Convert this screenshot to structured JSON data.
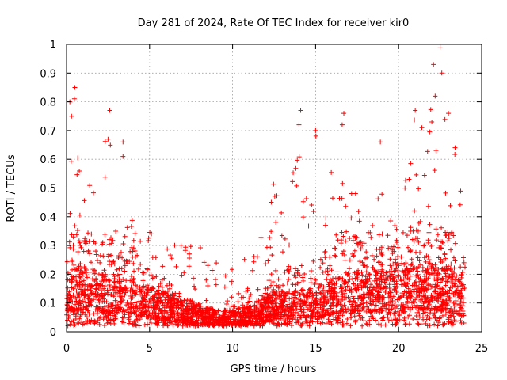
{
  "chart_data": {
    "type": "scatter",
    "title": "Day 281 of 2024, Rate Of TEC Index for receiver kir0",
    "xlabel": "GPS time / hours",
    "ylabel": "ROTI / TECUs",
    "xlim": [
      0,
      25
    ],
    "ylim": [
      0,
      1
    ],
    "xticks": [
      0,
      5,
      10,
      15,
      20,
      25
    ],
    "yticks": [
      0,
      0.1,
      0.2,
      0.3,
      0.4,
      0.5,
      0.6,
      0.7,
      0.8,
      0.9,
      1
    ],
    "xtick_labels": [
      "0",
      "5",
      "10",
      "15",
      "20",
      "25"
    ],
    "ytick_labels": [
      "0",
      "0.1",
      "0.2",
      "0.3",
      "0.4",
      "0.5",
      "0.6",
      "0.7",
      "0.8",
      "0.9",
      "1"
    ],
    "grid": true,
    "marker": "+",
    "color": "#ff0000",
    "series": [
      {
        "name": "ROTI",
        "x_range": [
          0,
          24
        ],
        "envelope": [
          {
            "x": 0.0,
            "base": 0.1,
            "spread": 0.25,
            "peak": 0.8
          },
          {
            "x": 0.5,
            "base": 0.14,
            "spread": 0.3,
            "peak": 0.85
          },
          {
            "x": 1.0,
            "base": 0.15,
            "spread": 0.25,
            "peak": 0.45
          },
          {
            "x": 1.5,
            "base": 0.14,
            "spread": 0.28,
            "peak": 0.55
          },
          {
            "x": 2.0,
            "base": 0.13,
            "spread": 0.25,
            "peak": 0.55
          },
          {
            "x": 2.5,
            "base": 0.12,
            "spread": 0.3,
            "peak": 0.77
          },
          {
            "x": 3.0,
            "base": 0.13,
            "spread": 0.22,
            "peak": 0.66
          },
          {
            "x": 3.5,
            "base": 0.14,
            "spread": 0.25,
            "peak": 0.5
          },
          {
            "x": 4.0,
            "base": 0.12,
            "spread": 0.22,
            "peak": 0.4
          },
          {
            "x": 5.0,
            "base": 0.1,
            "spread": 0.18,
            "peak": 0.36
          },
          {
            "x": 6.0,
            "base": 0.08,
            "spread": 0.14,
            "peak": 0.3
          },
          {
            "x": 7.0,
            "base": 0.06,
            "spread": 0.1,
            "peak": 0.32
          },
          {
            "x": 8.0,
            "base": 0.05,
            "spread": 0.07,
            "peak": 0.3
          },
          {
            "x": 9.0,
            "base": 0.04,
            "spread": 0.06,
            "peak": 0.25
          },
          {
            "x": 10.0,
            "base": 0.04,
            "spread": 0.06,
            "peak": 0.24
          },
          {
            "x": 11.0,
            "base": 0.05,
            "spread": 0.08,
            "peak": 0.3
          },
          {
            "x": 12.0,
            "base": 0.07,
            "spread": 0.12,
            "peak": 0.35
          },
          {
            "x": 12.5,
            "base": 0.09,
            "spread": 0.18,
            "peak": 0.58
          },
          {
            "x": 13.0,
            "base": 0.08,
            "spread": 0.16,
            "peak": 0.45
          },
          {
            "x": 13.5,
            "base": 0.09,
            "spread": 0.2,
            "peak": 0.5
          },
          {
            "x": 14.0,
            "base": 0.1,
            "spread": 0.22,
            "peak": 0.77
          },
          {
            "x": 14.5,
            "base": 0.09,
            "spread": 0.18,
            "peak": 0.45
          },
          {
            "x": 15.0,
            "base": 0.1,
            "spread": 0.22,
            "peak": 0.7
          },
          {
            "x": 16.0,
            "base": 0.12,
            "spread": 0.25,
            "peak": 0.55
          },
          {
            "x": 16.5,
            "base": 0.13,
            "spread": 0.28,
            "peak": 0.76
          },
          {
            "x": 17.0,
            "base": 0.14,
            "spread": 0.28,
            "peak": 0.6
          },
          {
            "x": 17.5,
            "base": 0.14,
            "spread": 0.26,
            "peak": 0.5
          },
          {
            "x": 18.0,
            "base": 0.15,
            "spread": 0.24,
            "peak": 0.45
          },
          {
            "x": 18.5,
            "base": 0.14,
            "spread": 0.24,
            "peak": 0.42
          },
          {
            "x": 19.0,
            "base": 0.14,
            "spread": 0.22,
            "peak": 0.66
          },
          {
            "x": 19.5,
            "base": 0.13,
            "spread": 0.24,
            "peak": 0.45
          },
          {
            "x": 20.0,
            "base": 0.14,
            "spread": 0.26,
            "peak": 0.45
          },
          {
            "x": 20.5,
            "base": 0.15,
            "spread": 0.3,
            "peak": 0.55
          },
          {
            "x": 21.0,
            "base": 0.16,
            "spread": 0.3,
            "peak": 0.77
          },
          {
            "x": 21.5,
            "base": 0.16,
            "spread": 0.32,
            "peak": 0.6
          },
          {
            "x": 22.0,
            "base": 0.16,
            "spread": 0.32,
            "peak": 0.93
          },
          {
            "x": 22.5,
            "base": 0.15,
            "spread": 0.3,
            "peak": 0.99
          },
          {
            "x": 23.0,
            "base": 0.14,
            "spread": 0.3,
            "peak": 0.76
          },
          {
            "x": 23.5,
            "base": 0.12,
            "spread": 0.28,
            "peak": 0.64
          },
          {
            "x": 24.0,
            "base": 0.1,
            "spread": 0.2,
            "peak": 0.4
          }
        ],
        "notable_points": [
          {
            "x": 0.2,
            "y": 0.8
          },
          {
            "x": 0.5,
            "y": 0.85
          },
          {
            "x": 0.3,
            "y": 0.75
          },
          {
            "x": 2.6,
            "y": 0.77
          },
          {
            "x": 2.5,
            "y": 0.67
          },
          {
            "x": 3.4,
            "y": 0.66
          },
          {
            "x": 3.4,
            "y": 0.61
          },
          {
            "x": 14.1,
            "y": 0.77
          },
          {
            "x": 14.0,
            "y": 0.72
          },
          {
            "x": 15.0,
            "y": 0.7
          },
          {
            "x": 16.7,
            "y": 0.76
          },
          {
            "x": 16.6,
            "y": 0.72
          },
          {
            "x": 18.9,
            "y": 0.66
          },
          {
            "x": 21.0,
            "y": 0.77
          },
          {
            "x": 21.4,
            "y": 0.71
          },
          {
            "x": 22.1,
            "y": 0.93
          },
          {
            "x": 22.5,
            "y": 0.99
          },
          {
            "x": 22.6,
            "y": 0.9
          },
          {
            "x": 22.2,
            "y": 0.82
          },
          {
            "x": 23.0,
            "y": 0.76
          },
          {
            "x": 22.0,
            "y": 0.73
          },
          {
            "x": 23.4,
            "y": 0.64
          },
          {
            "x": 17.8,
            "y": 0.02
          }
        ]
      }
    ]
  }
}
